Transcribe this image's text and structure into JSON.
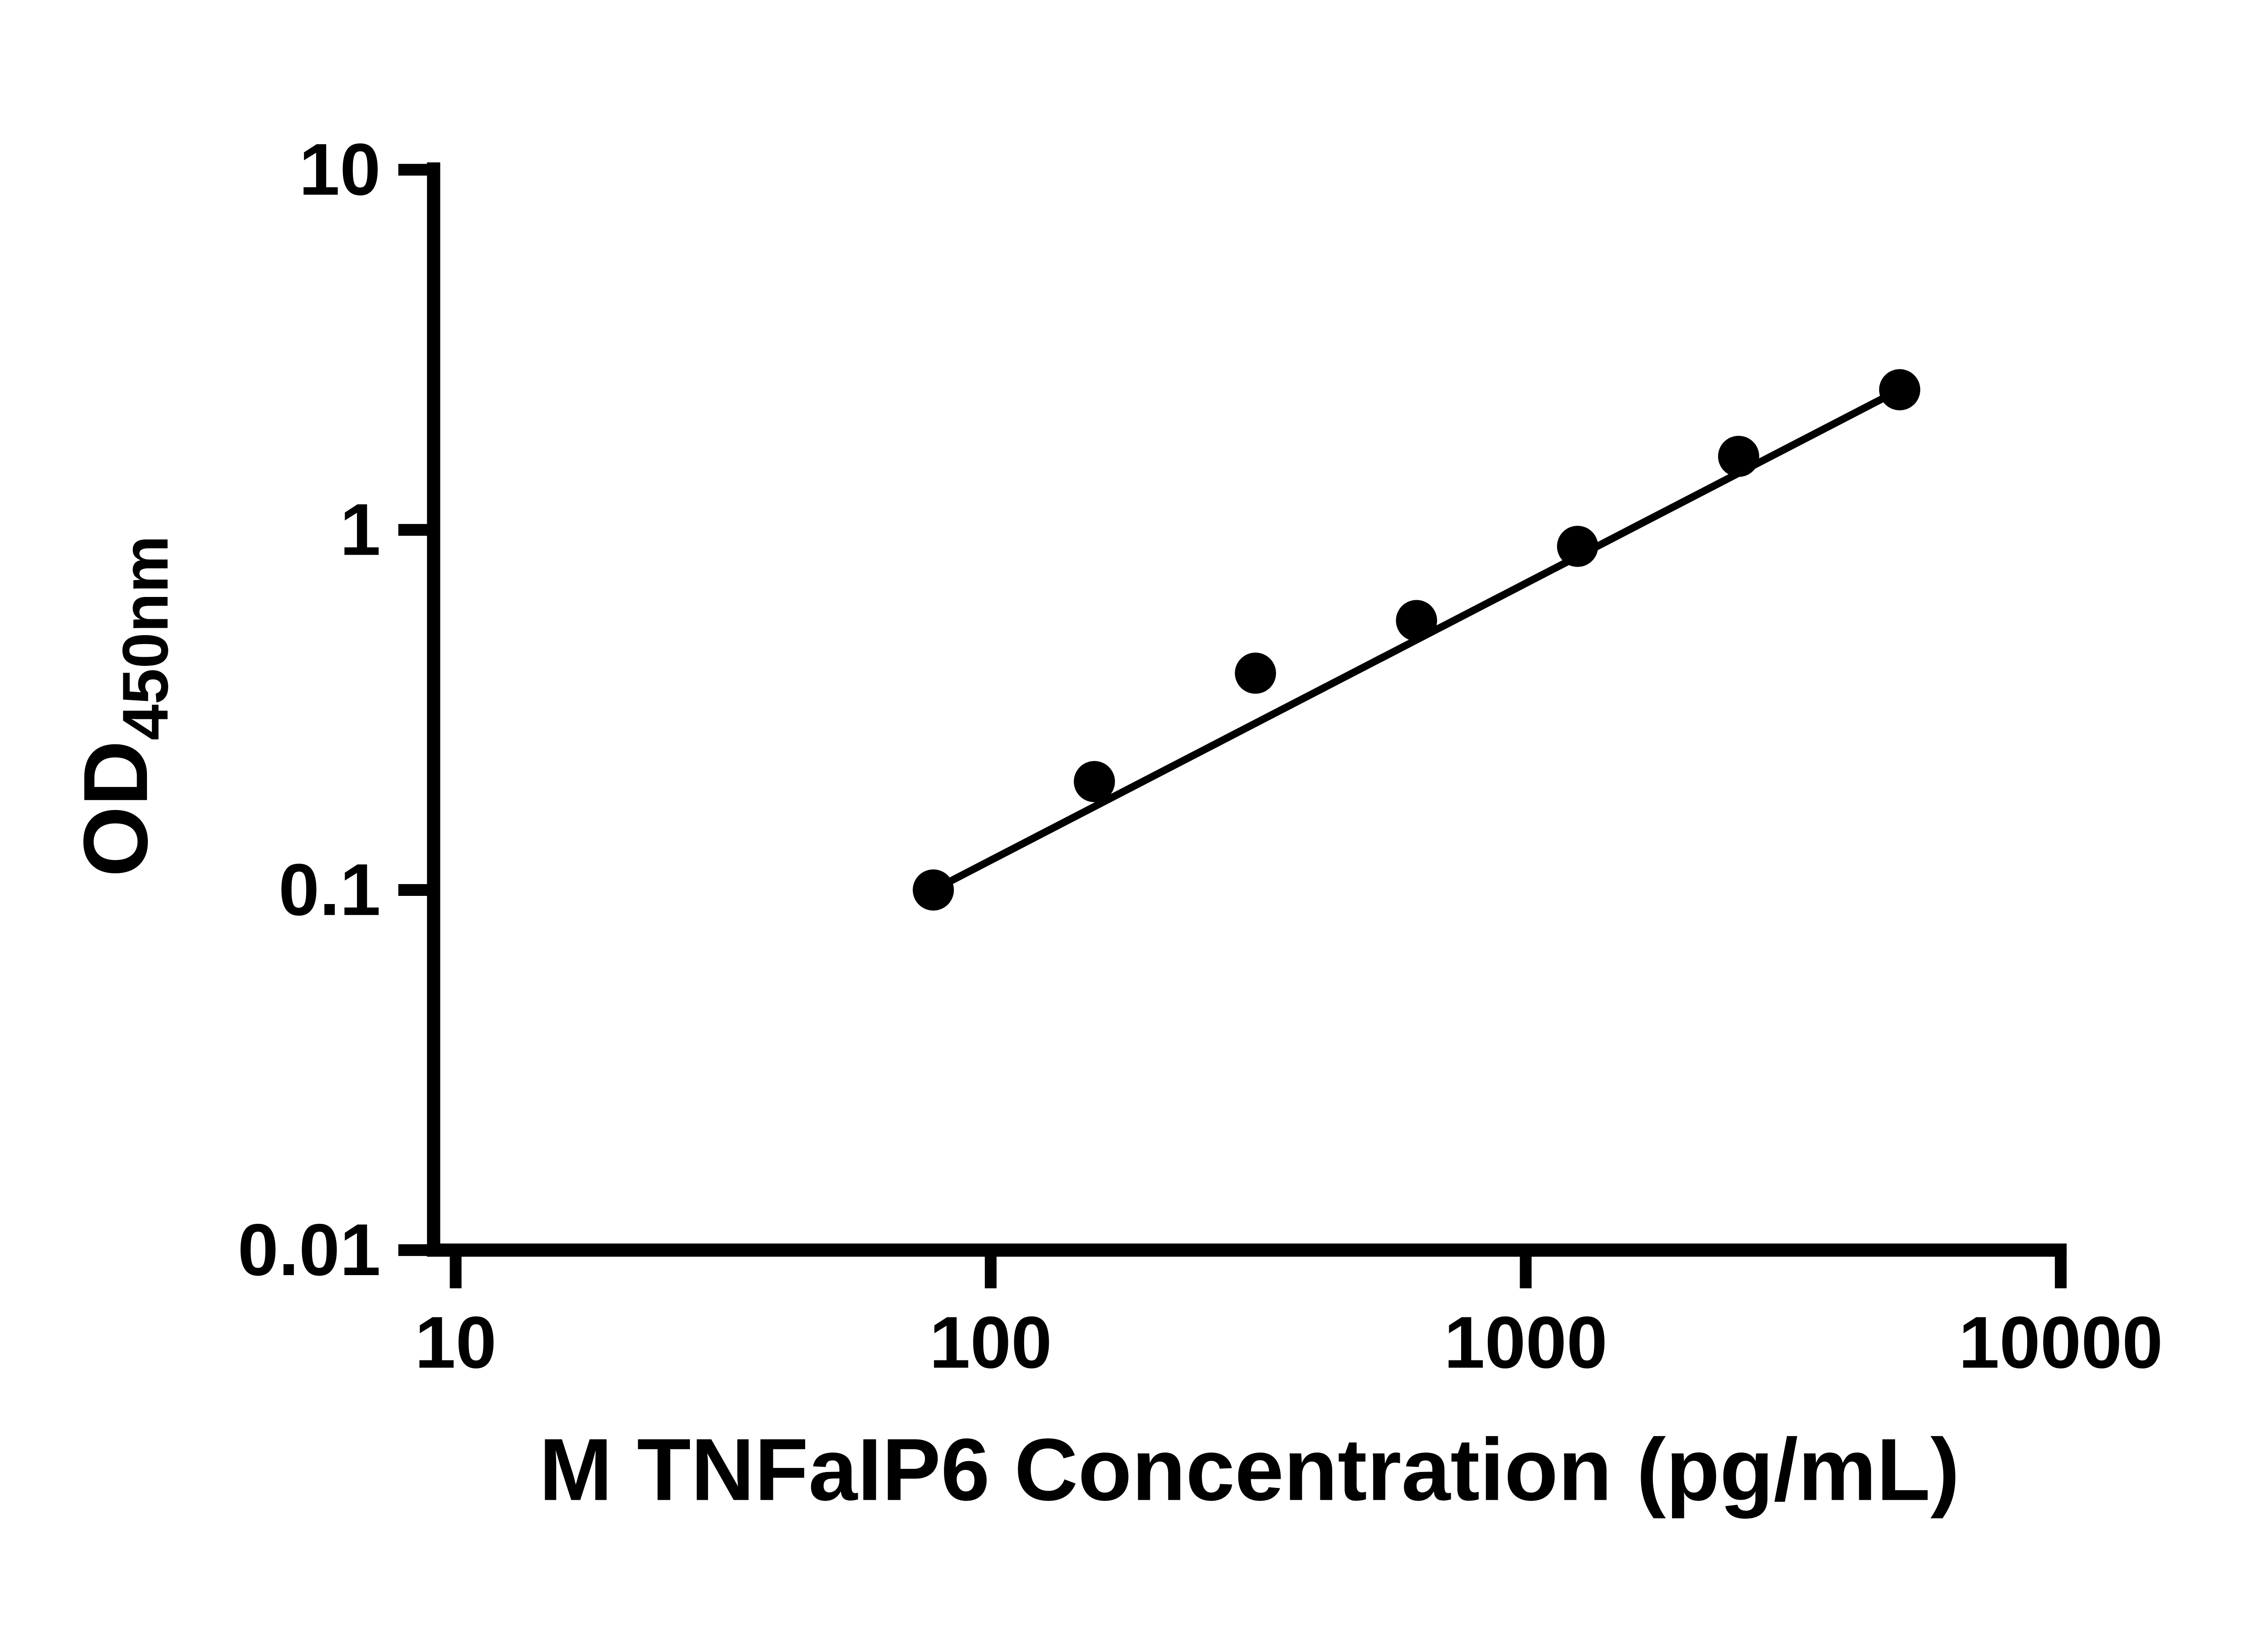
{
  "page": {
    "background_color": "#ffffff",
    "foreground_color": "#000000"
  },
  "chart_data": {
    "type": "scatter",
    "title": "",
    "xlabel": "M TNFaIP6 Concentration (pg/mL)",
    "ylabel": "OD450nm",
    "ylabel_main": "OD",
    "ylabel_sub": "450nm",
    "x_scale": "log10",
    "y_scale": "log10",
    "xlim": [
      10,
      10000
    ],
    "ylim": [
      0.01,
      10
    ],
    "grid": false,
    "legend": false,
    "x_ticks": [
      {
        "value": 10,
        "label": "10"
      },
      {
        "value": 100,
        "label": "100"
      },
      {
        "value": 1000,
        "label": "1000"
      },
      {
        "value": 10000,
        "label": "10000"
      }
    ],
    "y_ticks": [
      {
        "value": 0.01,
        "label": "0.01"
      },
      {
        "value": 0.1,
        "label": "0.1"
      },
      {
        "value": 1,
        "label": "1"
      },
      {
        "value": 10,
        "label": "10"
      }
    ],
    "series": [
      {
        "marker": "filled-circle",
        "marker_color": "#000000",
        "marker_radius_px": 14,
        "points": [
          {
            "x": 78.125,
            "y": 0.1
          },
          {
            "x": 156.25,
            "y": 0.2
          },
          {
            "x": 312.5,
            "y": 0.4
          },
          {
            "x": 625,
            "y": 0.56
          },
          {
            "x": 1250,
            "y": 0.9
          },
          {
            "x": 2500,
            "y": 1.6
          },
          {
            "x": 5000,
            "y": 2.45
          }
        ]
      }
    ],
    "fit_line": {
      "shape": "straight-in-loglog",
      "color": "#000000",
      "start": {
        "x": 78.125,
        "y": 0.1
      },
      "end": {
        "x": 5000,
        "y": 2.45
      }
    }
  }
}
